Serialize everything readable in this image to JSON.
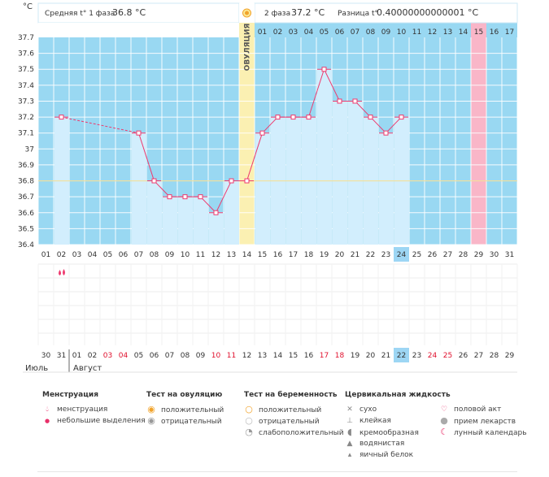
{
  "units": "°C",
  "header": {
    "phase1_label": "Средняя t° 1 фаза",
    "phase1_value": "36.8 °C",
    "phase2_label": "2 фаза",
    "phase2_value": "37.2 °C",
    "diff_label": "Разница t°",
    "diff_value": "0.40000000000001 °C"
  },
  "ovulation_label": "ОВУЛЯЦИЯ",
  "phase2_day_labels": [
    "01",
    "02",
    "03",
    "04",
    "05",
    "06",
    "07",
    "08",
    "09",
    "10",
    "11",
    "12",
    "13",
    "14",
    "15",
    "16",
    "17"
  ],
  "cycle_days": [
    "01",
    "02",
    "03",
    "04",
    "05",
    "06",
    "07",
    "08",
    "09",
    "10",
    "11",
    "12",
    "13",
    "14",
    "15",
    "16",
    "17",
    "18",
    "19",
    "20",
    "21",
    "22",
    "23",
    "24",
    "25",
    "26",
    "27",
    "28",
    "29",
    "30",
    "31"
  ],
  "current_cycle_day": "24",
  "calendar_days": [
    "30",
    "31",
    "01",
    "02",
    "03",
    "04",
    "05",
    "06",
    "07",
    "08",
    "09",
    "10",
    "11",
    "12",
    "13",
    "14",
    "15",
    "16",
    "17",
    "18",
    "19",
    "20",
    "21",
    "22",
    "23",
    "24",
    "25",
    "26",
    "27",
    "28",
    "29"
  ],
  "calendar_red_days": [
    "03",
    "04",
    "10",
    "11",
    "17",
    "18",
    "24",
    "25"
  ],
  "calendar_today": "22",
  "months": {
    "first": "Июль",
    "second": "Август"
  },
  "menstruation_marker": {
    "day": 2,
    "icon": "menstruation-drops-icon"
  },
  "colors": {
    "sky": "#99d8f2",
    "bar": "#d2eefd",
    "bar_border": "#b8e0f7",
    "grid_white": "#ffffff",
    "line": "#ee3b6f",
    "ovulation": "#fbf0b2",
    "ovulation_header": "#fbe995",
    "pink_day": "#f9b6c8",
    "today": "#9dd6f4",
    "coverline": "#f4e09a",
    "red_text": "#e0102d"
  },
  "chart_data": {
    "type": "line",
    "xlabel": "",
    "ylabel": "°C",
    "ylim": [
      36.4,
      37.7
    ],
    "yticks": [
      "37.7",
      "37.6",
      "37.5",
      "37.4",
      "37.3",
      "37.2",
      "37.1",
      "37",
      "36.9",
      "36.8",
      "36.7",
      "36.6",
      "36.5",
      "36.4"
    ],
    "x": [
      2,
      7,
      8,
      9,
      10,
      11,
      12,
      13,
      14,
      15,
      16,
      17,
      18,
      19,
      20,
      21,
      22,
      23,
      24
    ],
    "y": [
      37.2,
      37.1,
      36.8,
      36.7,
      36.7,
      36.7,
      36.6,
      36.8,
      36.8,
      37.1,
      37.2,
      37.2,
      37.2,
      37.5,
      37.3,
      37.3,
      37.2,
      37.1,
      37.2
    ],
    "dashed_segment": [
      2,
      7
    ],
    "coverline": 36.8,
    "ovulation_day": 14,
    "marked_day": 29,
    "grid": true
  },
  "legend": {
    "menstruation": {
      "title": "Менструация",
      "items": [
        {
          "icon": "menstruation-drops-icon",
          "label": "менструация"
        },
        {
          "icon": "small-drop-icon",
          "label": "небольшие выделения"
        }
      ]
    },
    "ovulation_test": {
      "title": "Тест на овуляцию",
      "items": [
        {
          "icon": "positive-test-icon",
          "label": "положительный"
        },
        {
          "icon": "negative-test-icon",
          "label": "отрицательный"
        }
      ]
    },
    "pregnancy_test": {
      "title": "Тест на беременность",
      "items": [
        {
          "icon": "positive-pregnancy-icon",
          "label": "положительный"
        },
        {
          "icon": "negative-pregnancy-icon",
          "label": "отрицательный"
        },
        {
          "icon": "weak-positive-pregnancy-icon",
          "label": "слабоположительный"
        }
      ]
    },
    "cervical": {
      "title": "Цервикальная жидкость",
      "items": [
        {
          "icon": "dry-icon",
          "label": "сухо"
        },
        {
          "icon": "sticky-icon",
          "label": "клейкая"
        },
        {
          "icon": "creamy-icon",
          "label": "кремообразная"
        },
        {
          "icon": "watery-icon",
          "label": "водянистая"
        },
        {
          "icon": "egg-white-icon",
          "label": "яичный белок"
        }
      ]
    },
    "other": {
      "items": [
        {
          "icon": "heart-icon",
          "label": "половой акт"
        },
        {
          "icon": "pill-icon",
          "label": "прием лекарств"
        },
        {
          "icon": "moon-icon",
          "label": "лунный календарь"
        }
      ]
    }
  }
}
